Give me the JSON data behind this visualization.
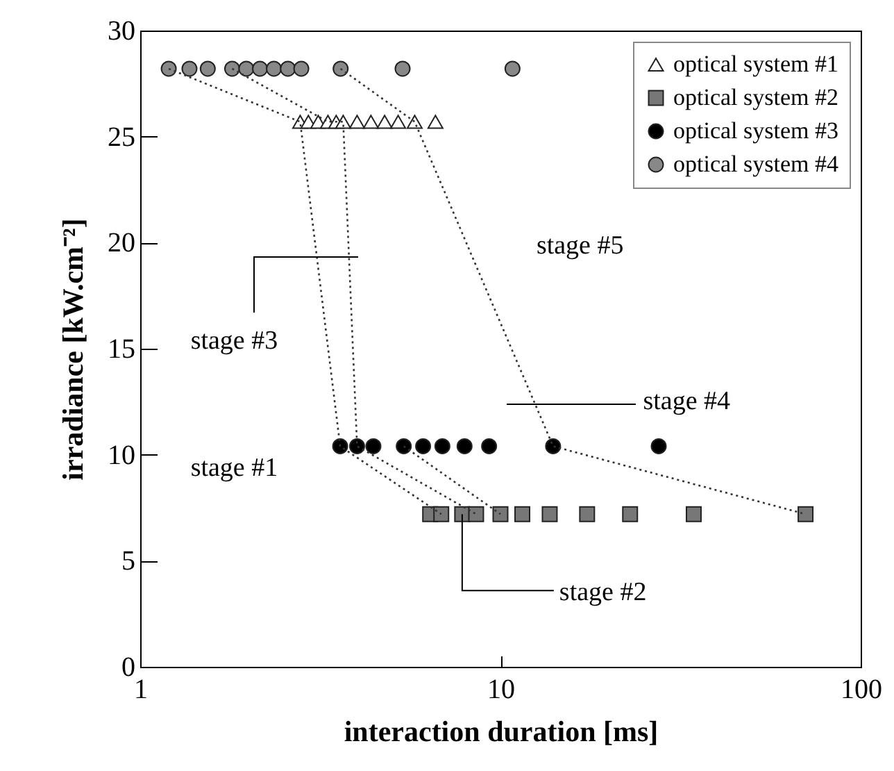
{
  "chart_data": {
    "type": "scatter",
    "xlabel": "interaction duration [ms]",
    "ylabel": "irradiance [kW.cm⁻²]",
    "log": "x",
    "xlim": [
      1,
      100
    ],
    "xticks": [
      1,
      10,
      100
    ],
    "ylim": [
      0,
      30
    ],
    "yticks": [
      0,
      5,
      10,
      15,
      20,
      25,
      30
    ],
    "grid": false,
    "legend": "top right",
    "annotations": [
      "stage #1",
      {
        "text": "stage #2",
        "x": 7.83,
        "y": 7.2
      },
      "stage #3",
      "stage #4",
      "stage #5"
    ],
    "series": [
      {
        "name": "optical system #1",
        "color": "#ffffff",
        "marker": "triangle",
        "x": [
          2.78,
          2.93,
          3.12,
          3.32,
          3.5,
          3.66,
          4.0,
          4.37,
          4.77,
          5.2,
          5.78,
          6.6
        ],
        "values": [
          25.7,
          25.7,
          25.7,
          25.7,
          25.7,
          25.7,
          25.7,
          25.7,
          25.7,
          25.7,
          25.7,
          25.7
        ]
      },
      {
        "name": "optical system #2",
        "color": "#777777",
        "marker": "square",
        "x": [
          6.38,
          6.85,
          7.83,
          8.56,
          10.0,
          11.5,
          13.7,
          17.4,
          22.9,
          34.4,
          70.3
        ],
        "values": [
          7.2,
          7.2,
          7.2,
          7.2,
          7.2,
          7.2,
          7.2,
          7.2,
          7.2,
          7.2,
          7.2
        ]
      },
      {
        "name": "optical system #3",
        "color": "#000000",
        "marker": "circle",
        "x": [
          3.59,
          4.0,
          4.44,
          5.39,
          6.1,
          6.9,
          7.95,
          9.3,
          14.0,
          27.5
        ],
        "values": [
          10.4,
          10.4,
          10.4,
          10.4,
          10.4,
          10.4,
          10.4,
          10.4,
          10.4,
          10.4
        ]
      },
      {
        "name": "optical system #4",
        "color": "#888888",
        "marker": "circle",
        "x": [
          1.2,
          1.37,
          1.54,
          1.8,
          1.97,
          2.15,
          2.35,
          2.57,
          2.8,
          3.6,
          5.35,
          10.8
        ],
        "values": [
          28.2,
          28.2,
          28.2,
          28.2,
          28.2,
          28.2,
          28.2,
          28.2,
          28.2,
          28.2,
          28.2,
          28.2
        ]
      },
      {
        "type": "line",
        "color": "#333333",
        "line_style": "dotted",
        "x": [
          1.2,
          2.78,
          3.59,
          6.85
        ],
        "values": [
          28.2,
          25.7,
          10.4,
          7.2
        ]
      },
      {
        "type": "line",
        "color": "#333333",
        "line_style": "dotted",
        "x": [
          1.8,
          3.32,
          3.66,
          4.0,
          8.56
        ],
        "values": [
          28.2,
          25.7,
          25.7,
          10.4,
          7.2
        ]
      },
      {
        "type": "line",
        "color": "#333333",
        "line_style": "dotted",
        "x": [
          5.39,
          10.0
        ],
        "values": [
          10.4,
          7.2
        ]
      },
      {
        "type": "line",
        "color": "#333333",
        "line_style": "dotted",
        "x": [
          3.6,
          5.78,
          14.0,
          70.3
        ],
        "values": [
          28.2,
          25.7,
          10.4,
          7.2
        ]
      }
    ]
  }
}
